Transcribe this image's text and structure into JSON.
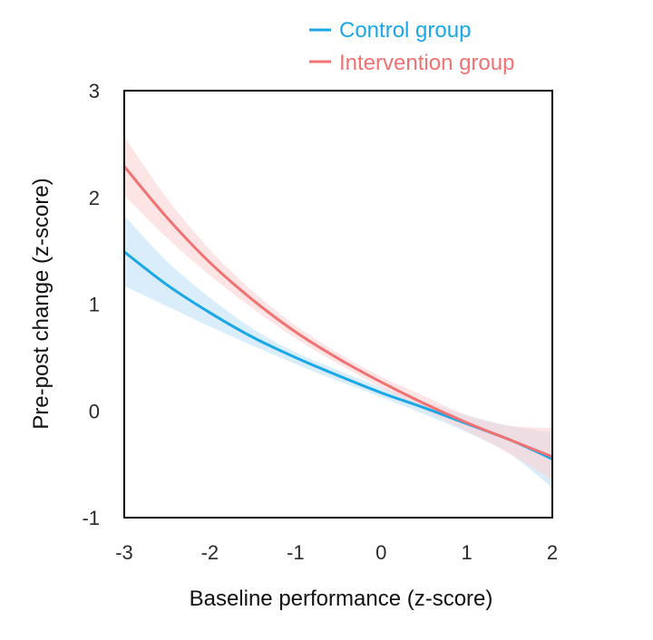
{
  "chart_data": {
    "type": "line",
    "title": "",
    "xlabel": "Baseline performance  (z-score)",
    "ylabel": "Pre-post  change (z-score)",
    "xlim": [
      -3,
      2
    ],
    "ylim": [
      -1,
      3
    ],
    "x_ticks": [
      "-3",
      "-2",
      "-1",
      "0",
      "1",
      "2"
    ],
    "y_ticks": [
      "3",
      "2",
      "1",
      "0",
      "-1"
    ],
    "grid": false,
    "legend_position": "top-right",
    "x": [
      -3,
      -2.5,
      -2,
      -1.5,
      -1,
      -0.5,
      0,
      0.5,
      1,
      1.5,
      2
    ],
    "series": [
      {
        "name": "Control group",
        "color": "#1aa7e8",
        "band_color": "#bfe3f7",
        "values": [
          1.49,
          1.18,
          0.92,
          0.69,
          0.5,
          0.33,
          0.17,
          0.03,
          -0.12,
          -0.27,
          -0.45
        ],
        "ci_lower": [
          1.17,
          0.98,
          0.79,
          0.61,
          0.44,
          0.28,
          0.13,
          -0.03,
          -0.2,
          -0.4,
          -0.72
        ],
        "ci_upper": [
          1.83,
          1.4,
          1.06,
          0.77,
          0.55,
          0.38,
          0.22,
          0.09,
          -0.04,
          -0.14,
          -0.2
        ]
      },
      {
        "name": "Intervention group",
        "color": "#f07272",
        "band_color": "#fbd3d6",
        "values": [
          2.29,
          1.81,
          1.39,
          1.04,
          0.74,
          0.49,
          0.27,
          0.07,
          -0.11,
          -0.27,
          -0.43
        ],
        "ci_lower": [
          2.02,
          1.62,
          1.27,
          0.96,
          0.68,
          0.44,
          0.22,
          0.01,
          -0.19,
          -0.4,
          -0.65
        ],
        "ci_upper": [
          2.57,
          1.99,
          1.51,
          1.12,
          0.8,
          0.54,
          0.32,
          0.14,
          -0.04,
          -0.14,
          -0.16
        ]
      }
    ]
  }
}
